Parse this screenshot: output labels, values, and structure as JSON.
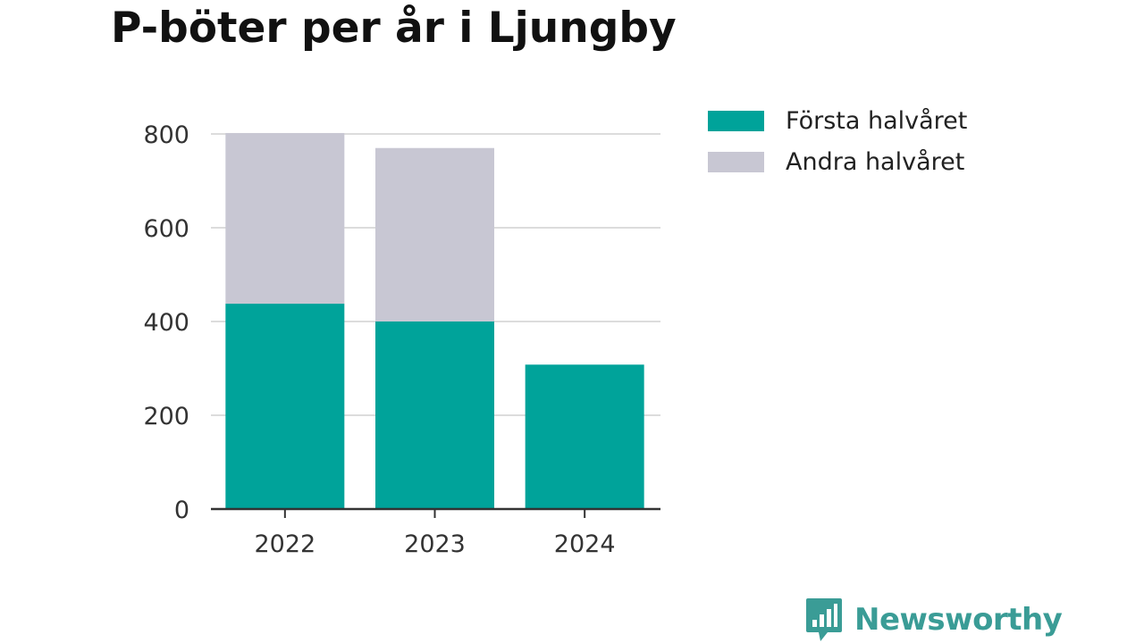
{
  "chart_data": {
    "type": "bar",
    "stacked": true,
    "title": "P-böter per år i Ljungby",
    "xlabel": "",
    "ylabel": "",
    "categories": [
      "2022",
      "2023",
      "2024"
    ],
    "series": [
      {
        "name": "Första halvåret",
        "color": "#00a39a",
        "values": [
          438,
          400,
          308
        ]
      },
      {
        "name": "Andra halvåret",
        "color": "#c8c7d3",
        "values": [
          364,
          370,
          0
        ]
      }
    ],
    "ylim": [
      0,
      800
    ],
    "yticks": [
      "0",
      "200",
      "400",
      "600",
      "800"
    ],
    "grid": true,
    "legend_position": "top-right"
  },
  "brand": {
    "name": "Newsworthy",
    "icon": "newsworthy-logo-icon",
    "color": "#3a9c96"
  }
}
